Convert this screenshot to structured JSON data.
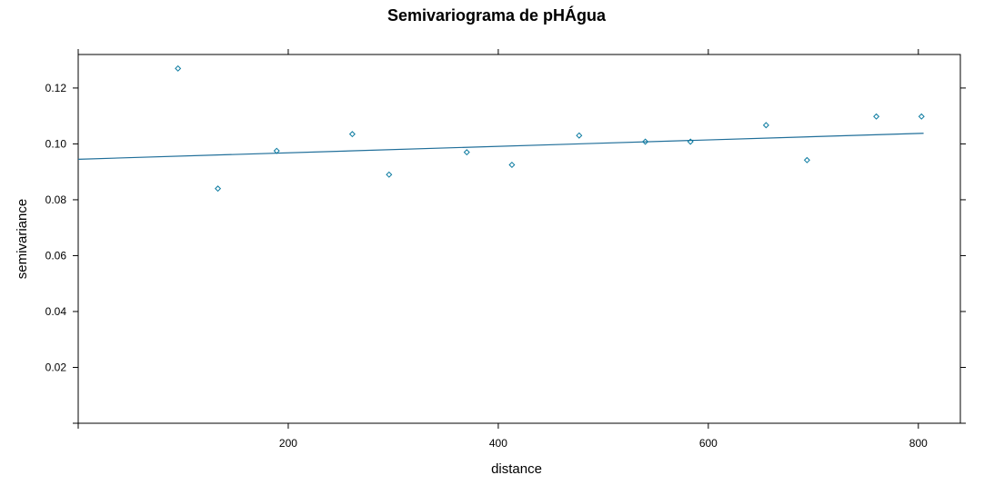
{
  "chart_data": {
    "type": "scatter",
    "title": "Semivariograma de pHÁgua",
    "xlabel": "distance",
    "ylabel": "semivariance",
    "xlim": [
      0,
      840
    ],
    "ylim": [
      0,
      0.132
    ],
    "x_ticks": [
      200,
      400,
      600,
      800
    ],
    "y_ticks": [
      0.02,
      0.04,
      0.06,
      0.08,
      0.1,
      0.12
    ],
    "grid": false,
    "colors": {
      "points": "#0a7aa0",
      "line": "#1f6e99",
      "frame": "#000000"
    },
    "points": [
      {
        "x": 95,
        "y": 0.127
      },
      {
        "x": 133,
        "y": 0.084
      },
      {
        "x": 189,
        "y": 0.0975
      },
      {
        "x": 261,
        "y": 0.1035
      },
      {
        "x": 296,
        "y": 0.089
      },
      {
        "x": 370,
        "y": 0.097
      },
      {
        "x": 413,
        "y": 0.0925
      },
      {
        "x": 477,
        "y": 0.103
      },
      {
        "x": 540,
        "y": 0.1008
      },
      {
        "x": 583,
        "y": 0.1008
      },
      {
        "x": 655,
        "y": 0.1067
      },
      {
        "x": 694,
        "y": 0.0942
      },
      {
        "x": 760,
        "y": 0.1098
      },
      {
        "x": 803,
        "y": 0.1098
      }
    ],
    "fitted_line": {
      "x": [
        0,
        805
      ],
      "y": [
        0.0945,
        0.1038
      ]
    }
  }
}
